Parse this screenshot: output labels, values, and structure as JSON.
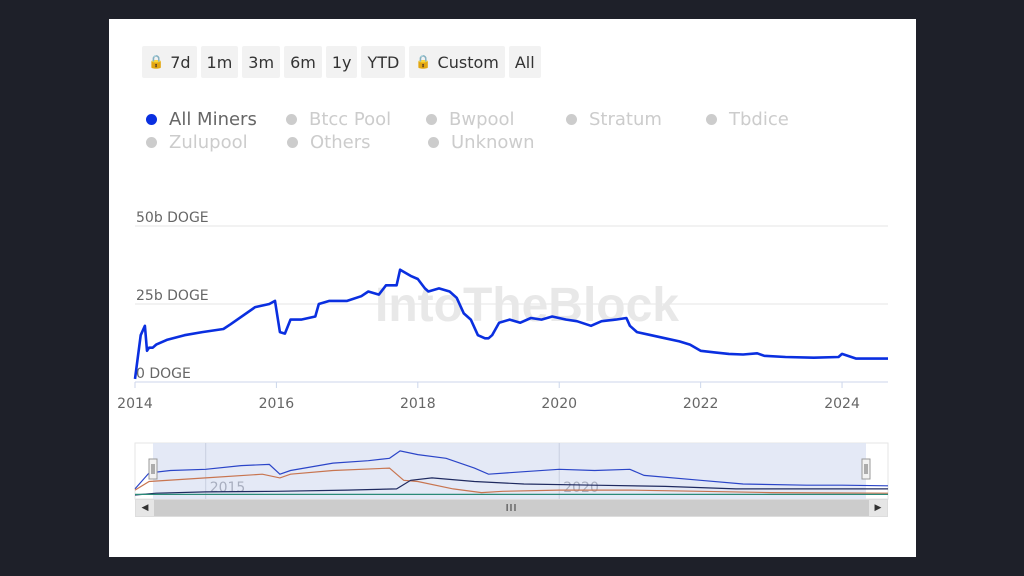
{
  "range_selector": {
    "buttons": [
      {
        "label": "7d",
        "locked": true
      },
      {
        "label": "1m",
        "locked": false
      },
      {
        "label": "3m",
        "locked": false
      },
      {
        "label": "6m",
        "locked": false
      },
      {
        "label": "1y",
        "locked": false
      },
      {
        "label": "YTD",
        "locked": false
      },
      {
        "label": "Custom",
        "locked": true
      },
      {
        "label": "All",
        "locked": false
      }
    ]
  },
  "legend": {
    "row1": [
      {
        "label": "All Miners",
        "active": true
      },
      {
        "label": "Btcc Pool",
        "active": false
      },
      {
        "label": "Bwpool",
        "active": false
      },
      {
        "label": "Stratum",
        "active": false
      },
      {
        "label": "Tbdice",
        "active": false
      }
    ],
    "row2": [
      {
        "label": "Zulupool",
        "active": false
      },
      {
        "label": "Others",
        "active": false
      },
      {
        "label": "Unknown",
        "active": false
      }
    ]
  },
  "watermark": "IntoTheBlock",
  "navigator": {
    "labels": [
      "2015",
      "2020"
    ],
    "thumb_glyph": "III",
    "left_arrow": "◀",
    "right_arrow": "▶"
  },
  "chart_data": {
    "type": "line",
    "title": "",
    "xlabel": "",
    "ylabel": "",
    "x_ticks": [
      "2014",
      "2016",
      "2018",
      "2020",
      "2022",
      "2024"
    ],
    "y_ticks": [
      "0 DOGE",
      "25b DOGE",
      "50b DOGE"
    ],
    "ylim": [
      0,
      50
    ],
    "y_unit": "b DOGE",
    "xlim": [
      2014.0,
      2024.65
    ],
    "grid": true,
    "series": [
      {
        "name": "All Miners",
        "color": "#0a2fe0",
        "x": [
          2014.0,
          2014.08,
          2014.14,
          2014.17,
          2014.2,
          2014.25,
          2014.3,
          2014.45,
          2014.7,
          2014.95,
          2015.25,
          2015.35,
          2015.7,
          2015.9,
          2015.98,
          2016.05,
          2016.12,
          2016.2,
          2016.35,
          2016.55,
          2016.6,
          2016.75,
          2017.0,
          2017.2,
          2017.3,
          2017.45,
          2017.55,
          2017.7,
          2017.75,
          2017.9,
          2018.0,
          2018.1,
          2018.15,
          2018.3,
          2018.45,
          2018.55,
          2018.65,
          2018.75,
          2018.85,
          2018.95,
          2019.0,
          2019.05,
          2019.15,
          2019.3,
          2019.45,
          2019.6,
          2019.75,
          2019.9,
          2020.1,
          2020.25,
          2020.45,
          2020.6,
          2020.8,
          2020.95,
          2021.0,
          2021.1,
          2021.3,
          2021.5,
          2021.7,
          2021.85,
          2022.0,
          2022.2,
          2022.4,
          2022.6,
          2022.8,
          2022.9,
          2023.2,
          2023.6,
          2023.95,
          2024.0,
          2024.2,
          2024.65
        ],
        "y": [
          1,
          15,
          18,
          10,
          11,
          11,
          12,
          13.5,
          15,
          16,
          17,
          18.5,
          24,
          25,
          26,
          16,
          15.5,
          20,
          20,
          21,
          25,
          26,
          26,
          27.5,
          29,
          28,
          31,
          31,
          36,
          34,
          33,
          30,
          29,
          30,
          29,
          27,
          22,
          20,
          15,
          14,
          14,
          15,
          19,
          20,
          19,
          20.5,
          20,
          21,
          20,
          19.5,
          18,
          19.5,
          20,
          20.5,
          18,
          16,
          15,
          14,
          13,
          12,
          10,
          9.5,
          9,
          8.8,
          9.2,
          8.4,
          8,
          7.8,
          8,
          9,
          7.5,
          7.5
        ]
      }
    ],
    "navigator_series": [
      {
        "name": "navigator-blue",
        "color": "#2b45c8",
        "x": [
          2014.0,
          2014.2,
          2014.5,
          2015.0,
          2015.5,
          2015.9,
          2016.05,
          2016.2,
          2016.8,
          2017.3,
          2017.6,
          2017.75,
          2018.0,
          2018.4,
          2018.8,
          2019.0,
          2019.5,
          2020.0,
          2020.5,
          2021.0,
          2021.2,
          2022.0,
          2022.6,
          2023.5,
          2024.0,
          2024.65
        ],
        "y": [
          5,
          18,
          20,
          21,
          24,
          25,
          17,
          20,
          26,
          28,
          30,
          36,
          33,
          30,
          22,
          17,
          19,
          21,
          20,
          21,
          16,
          12,
          9,
          8,
          8,
          7.5
        ]
      },
      {
        "name": "navigator-orange",
        "color": "#c87550",
        "x": [
          2014.0,
          2014.2,
          2015.0,
          2015.8,
          2016.05,
          2016.2,
          2016.8,
          2017.6,
          2017.8,
          2018.0,
          2018.5,
          2018.9,
          2019.2,
          2020.0,
          2021.0,
          2022.0,
          2023.0,
          2024.65
        ],
        "y": [
          4,
          11,
          14,
          17,
          14,
          17,
          20,
          22,
          12,
          11,
          5,
          2,
          3,
          4,
          4,
          3,
          2,
          1.5
        ]
      },
      {
        "name": "navigator-navy",
        "color": "#1f2a60",
        "x": [
          2014.0,
          2014.3,
          2015.0,
          2016.0,
          2017.0,
          2017.7,
          2017.9,
          2018.2,
          2018.8,
          2019.5,
          2020.5,
          2021.5,
          2022.5,
          2023.5,
          2024.65
        ],
        "y": [
          0,
          1.5,
          2.5,
          3,
          4,
          5,
          12,
          14,
          11,
          9,
          8,
          7,
          5,
          5,
          5
        ]
      },
      {
        "name": "navigator-teal",
        "color": "#2a8a78",
        "x": [
          2014.0,
          2024.65
        ],
        "y": [
          0.5,
          0.5
        ]
      }
    ]
  }
}
